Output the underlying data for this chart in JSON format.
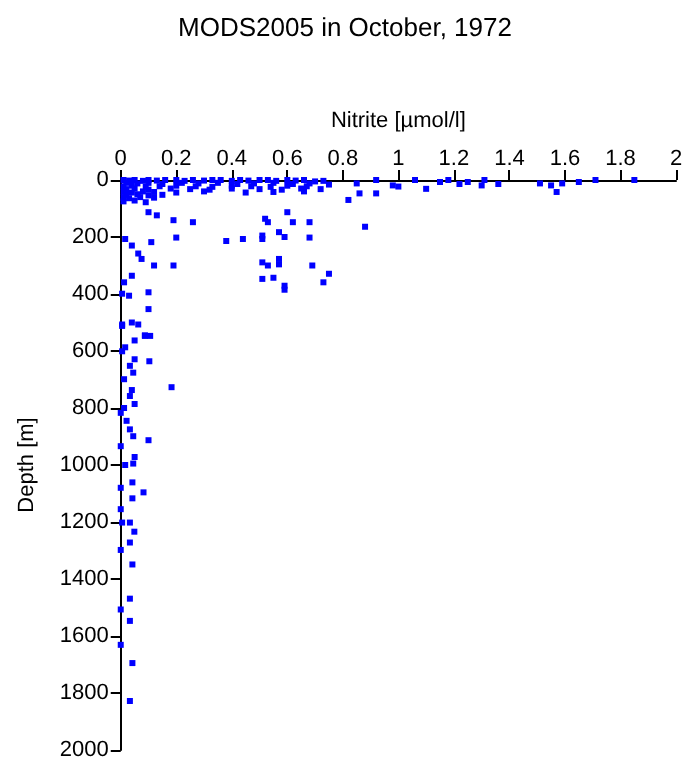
{
  "chart_data": {
    "type": "scatter",
    "title": "MODS2005 in October, 1972",
    "xlabel": "Nitrite [µmol/l]",
    "ylabel": "Depth [m]",
    "xlim": [
      0,
      2
    ],
    "xticks": [
      0,
      0.2,
      0.4,
      0.6,
      0.8,
      1,
      1.2,
      1.4,
      1.6,
      1.8,
      2
    ],
    "ylim": [
      2000,
      0
    ],
    "yticks": [
      0,
      200,
      400,
      600,
      800,
      1000,
      1200,
      1400,
      1600,
      1800,
      2000
    ],
    "marker": "square",
    "series": [
      {
        "color": "#0000ff",
        "x": [
          0.01,
          0.03,
          0.05,
          0.08,
          0.1,
          0.13,
          0.16,
          0.2,
          0.23,
          0.26,
          0.3,
          0.33,
          0.36,
          0.4,
          0.43,
          0.46,
          0.5,
          0.53,
          0.56,
          0.6,
          0.63,
          0.66,
          0.7,
          0.73,
          0.02,
          0.06,
          0.1,
          0.15,
          0.22,
          0.28,
          0.35,
          0.42,
          0.48,
          0.55,
          0.62,
          0.68,
          0.75,
          0.01,
          0.04,
          0.09,
          0.14,
          0.2,
          0.27,
          0.33,
          0.4,
          0.47,
          0.54,
          0.6,
          0.67,
          0.02,
          0.05,
          0.1,
          0.18,
          0.25,
          0.32,
          0.4,
          0.5,
          0.58,
          0.65,
          0.72,
          0.01,
          0.04,
          0.08,
          0.12,
          0.2,
          0.3,
          0.45,
          0.55,
          0.66,
          0.02,
          0.06,
          0.1,
          0.15,
          0.01,
          0.03,
          0.07,
          0.12,
          0.01,
          0.05,
          0.09,
          0.85,
          0.92,
          0.98,
          1.0,
          1.06,
          1.1,
          1.18,
          1.22,
          1.25,
          1.31,
          1.36,
          1.51,
          1.55,
          1.57,
          1.59,
          1.65,
          1.71,
          1.85,
          0.82,
          0.86,
          0.92,
          1.15,
          1.3,
          0.19,
          0.26,
          0.2,
          0.38,
          0.44,
          0.52,
          0.53,
          0.51,
          0.51,
          0.57,
          0.59,
          0.6,
          0.62,
          0.68,
          0.68,
          0.88,
          0.51,
          0.53,
          0.57,
          0.57,
          0.55,
          0.51,
          0.59,
          0.59,
          0.69,
          0.75,
          0.73,
          0.12,
          0.19,
          0.1,
          0.1,
          0.03,
          0.005,
          0.04,
          0.087,
          0.016,
          0.04,
          0.063,
          0.11,
          0.13,
          0.1,
          0.04,
          0.012,
          0.075,
          0.005,
          0.005,
          0.063,
          0.087,
          0.106,
          0.05,
          0.016,
          0.005,
          0.05,
          0.103,
          0.033,
          0.045,
          0.012,
          0.183,
          0.04,
          0.033,
          0.05,
          0.012,
          0,
          0.021,
          0.033,
          0.045,
          0.1,
          0,
          0.05,
          0.016,
          0.045,
          0,
          0.042,
          0.082,
          0.042,
          0,
          0.005,
          0.033,
          0.049,
          0.033,
          0,
          0.042,
          0.033,
          0,
          0.033,
          0,
          0.042,
          0.033
        ],
        "values": [
          0,
          2,
          0,
          3,
          0,
          2,
          0,
          0,
          3,
          0,
          2,
          0,
          0,
          3,
          0,
          2,
          0,
          0,
          3,
          0,
          2,
          0,
          5,
          3,
          10,
          12,
          10,
          14,
          10,
          12,
          10,
          14,
          12,
          10,
          14,
          12,
          16,
          22,
          20,
          24,
          22,
          20,
          22,
          24,
          20,
          22,
          24,
          20,
          22,
          32,
          30,
          34,
          30,
          32,
          34,
          30,
          32,
          34,
          30,
          32,
          42,
          44,
          40,
          42,
          44,
          40,
          44,
          42,
          40,
          52,
          50,
          54,
          52,
          62,
          64,
          60,
          62,
          75,
          72,
          78,
          12,
          0,
          19,
          23,
          0,
          31,
          0,
          14,
          7,
          0,
          14,
          12,
          19,
          42,
          12,
          7,
          0,
          0,
          70,
          47,
          47,
          7,
          19,
          141,
          148,
          202,
          214,
          207,
          136,
          148,
          195,
          207,
          183,
          200,
          113,
          148,
          148,
          202,
          164,
          289,
          300,
          277,
          296,
          343,
          347,
          371,
          385,
          300,
          329,
          359,
          300,
          300,
          394,
          453,
          406,
          399,
          500,
          545,
          207,
          230,
          258,
          218,
          124,
          113,
          336,
          359,
          277,
          512,
          507,
          507,
          547,
          547,
          563,
          587,
          601,
          629,
          636,
          652,
          676,
          699,
          727,
          737,
          758,
          786,
          800,
          817,
          845,
          875,
          899,
          913,
          934,
          972,
          1000,
          995,
          1080,
          1061,
          1096,
          1117,
          1155,
          1202,
          1202,
          1234,
          1272,
          1298,
          1349,
          1469,
          1507,
          1547,
          1631,
          1695,
          1828
        ]
      }
    ]
  }
}
